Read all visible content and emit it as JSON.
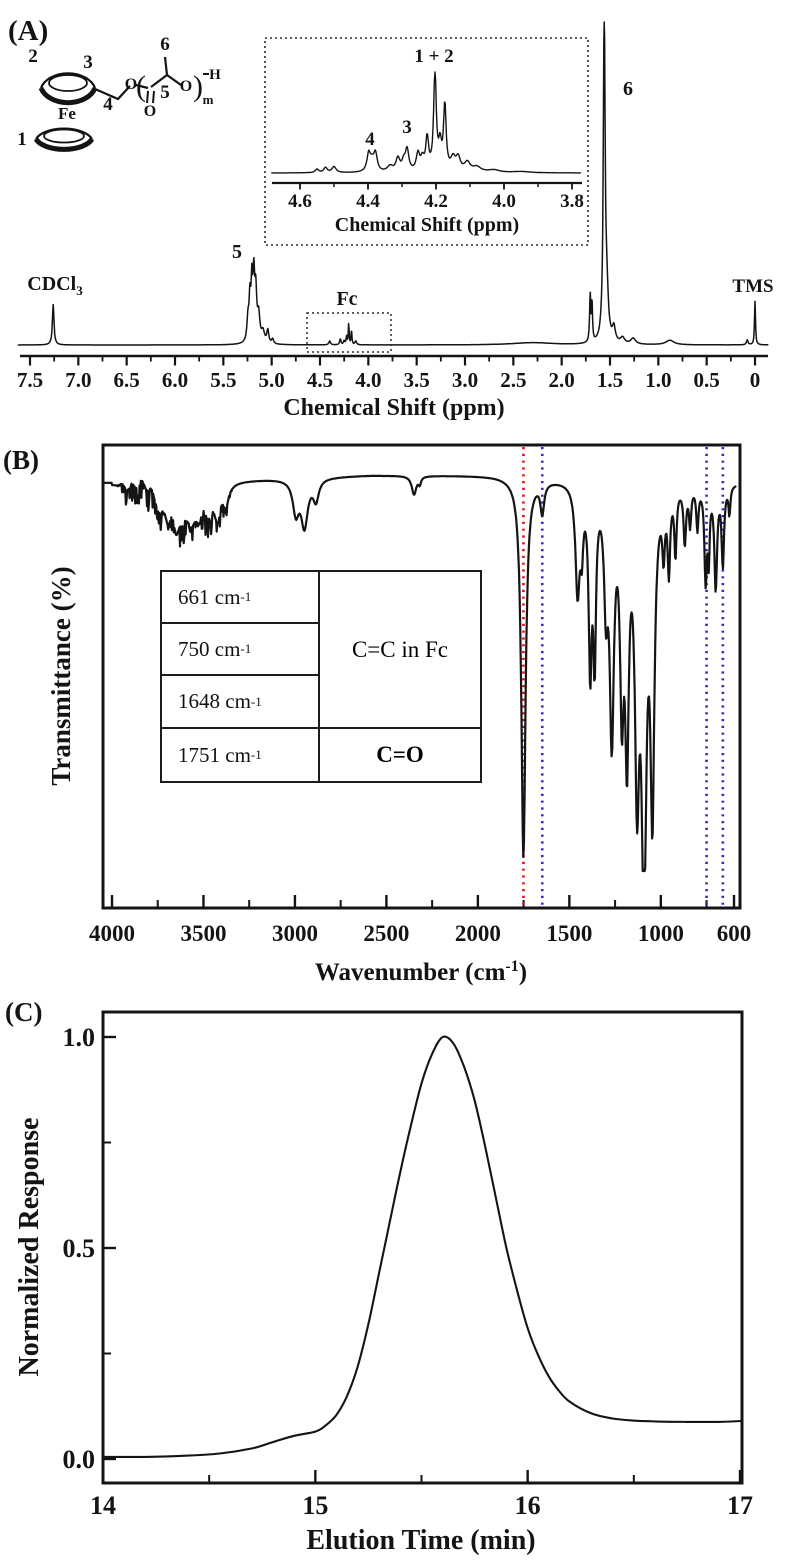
{
  "colors": {
    "ink": "#141414",
    "blue": "#2b2bd2",
    "red": "#dd1414",
    "background": "#ffffff"
  },
  "panel_a": {
    "tag": "(A)",
    "structure": {
      "ring_label_1": "1",
      "ring_label_2": "2",
      "ring_label_3": "3",
      "ch2_label": "4",
      "ch_label": "5",
      "ch3_label": "6",
      "fe": "Fe",
      "o_ester": "O",
      "o_carbonyl": "O",
      "o_chain": "O",
      "end_h": "H",
      "repeat_sub": "m"
    },
    "annotations": {
      "cdcl3_main": "CDCl",
      "cdcl3_sub": "3",
      "peak5": "5",
      "fc": "Fc",
      "peak6": "6",
      "tms": "TMS"
    },
    "inset_labels": {
      "p4": "4",
      "p3": "3",
      "p12": "1 + 2"
    }
  },
  "panel_b": {
    "tag": "(B)",
    "table": {
      "rows": [
        {
          "pre": "661 cm",
          "sup": "-1"
        },
        {
          "pre": "750 cm",
          "sup": "-1"
        },
        {
          "pre": "1648 cm",
          "sup": "-1"
        },
        {
          "pre": "1751 cm",
          "sup": "-1"
        }
      ],
      "assignment_blue": "C=C in Fc",
      "assignment_red": "C=O"
    }
  },
  "panel_c": {
    "tag": "(C)"
  },
  "chart_data": [
    {
      "id": "nmr_main",
      "type": "line",
      "xlabel": "Chemical Shift (ppm)",
      "xlim": [
        7.62,
        -0.135
      ],
      "ylim": [
        0,
        1.05
      ],
      "x_ticks": [
        7.5,
        7.0,
        6.5,
        6.0,
        5.5,
        5.0,
        4.5,
        4.0,
        3.5,
        3.0,
        2.5,
        2.0,
        1.5,
        1.0,
        0.5,
        0
      ],
      "x_tick_labels": [
        "7.5",
        "7.0",
        "6.5",
        "6.0",
        "5.5",
        "5.0",
        "4.5",
        "4.0",
        "3.5",
        "3.0",
        "2.5",
        "2.0",
        "1.5",
        "1.0",
        "0.5",
        "0"
      ],
      "x_minor_ticks": [
        7.25,
        6.75,
        6.25,
        5.75,
        5.25,
        4.75,
        4.25,
        3.75,
        3.25,
        2.75,
        2.25,
        1.75,
        1.25,
        0.75,
        0.25
      ],
      "peak_assignments": [
        {
          "ppm": 7.26,
          "label": "CDCl3"
        },
        {
          "ppm": 5.2,
          "label": "5"
        },
        {
          "ppm": 4.2,
          "label": "Fc"
        },
        {
          "ppm": 1.56,
          "label": "6"
        },
        {
          "ppm": 0.0,
          "label": "TMS"
        }
      ],
      "peaks": [
        [
          7.26,
          0.125,
          0.01
        ],
        [
          5.245,
          0.07,
          0.012
        ],
        [
          5.225,
          0.12,
          0.01
        ],
        [
          5.205,
          0.17,
          0.01
        ],
        [
          5.185,
          0.18,
          0.01
        ],
        [
          5.165,
          0.15,
          0.012
        ],
        [
          5.135,
          0.08,
          0.015
        ],
        [
          5.09,
          0.035,
          0.02
        ],
        [
          5.04,
          0.04,
          0.012
        ],
        [
          4.99,
          0.015,
          0.012
        ],
        [
          4.4,
          0.012,
          0.01
        ],
        [
          4.29,
          0.018,
          0.008
        ],
        [
          4.25,
          0.012,
          0.008
        ],
        [
          4.225,
          0.025,
          0.006
        ],
        [
          4.203,
          0.065,
          0.005
        ],
        [
          4.174,
          0.045,
          0.005
        ],
        [
          4.13,
          0.012,
          0.01
        ],
        [
          2.3,
          0.007,
          0.25
        ],
        [
          1.705,
          0.145,
          0.007
        ],
        [
          1.686,
          0.12,
          0.006
        ],
        [
          1.56,
          1.0,
          0.011
        ],
        [
          1.535,
          0.14,
          0.02
        ],
        [
          1.46,
          0.045,
          0.018
        ],
        [
          1.37,
          0.018,
          0.025
        ],
        [
          1.26,
          0.018,
          0.03
        ],
        [
          0.88,
          0.014,
          0.05
        ],
        [
          0.08,
          0.015,
          0.01
        ],
        [
          0.0,
          0.135,
          0.006
        ]
      ]
    },
    {
      "id": "nmr_inset",
      "type": "line",
      "xlabel": "Chemical Shift (ppm)",
      "xlim": [
        4.683,
        3.775
      ],
      "ylim": [
        0,
        1.1
      ],
      "x_ticks": [
        4.6,
        4.4,
        4.2,
        4.0,
        3.8
      ],
      "x_tick_labels": [
        "4.6",
        "4.4",
        "4.2",
        "4.0",
        "3.8"
      ],
      "x_minor_ticks": [
        4.5,
        4.3,
        4.1,
        3.9
      ],
      "peak_assignments": [
        {
          "ppm": 4.39,
          "label": "4"
        },
        {
          "ppm": 4.285,
          "label": "3"
        },
        {
          "ppm": 4.19,
          "label": "1 + 2"
        }
      ],
      "peaks": [
        [
          4.55,
          0.035,
          0.006
        ],
        [
          4.525,
          0.05,
          0.006
        ],
        [
          4.5,
          0.06,
          0.007
        ],
        [
          4.398,
          0.17,
          0.006
        ],
        [
          4.388,
          0.09,
          0.008
        ],
        [
          4.378,
          0.17,
          0.006
        ],
        [
          4.335,
          0.055,
          0.01
        ],
        [
          4.312,
          0.13,
          0.007
        ],
        [
          4.295,
          0.09,
          0.006
        ],
        [
          4.285,
          0.21,
          0.006
        ],
        [
          4.253,
          0.17,
          0.006
        ],
        [
          4.24,
          0.11,
          0.006
        ],
        [
          4.226,
          0.32,
          0.005
        ],
        [
          4.203,
          1.0,
          0.0045
        ],
        [
          4.188,
          0.24,
          0.005
        ],
        [
          4.174,
          0.65,
          0.0045
        ],
        [
          4.15,
          0.12,
          0.008
        ],
        [
          4.135,
          0.13,
          0.008
        ],
        [
          4.108,
          0.09,
          0.01
        ],
        [
          4.08,
          0.05,
          0.015
        ],
        [
          4.03,
          0.025,
          0.02
        ],
        [
          3.95,
          0.012,
          0.03
        ]
      ]
    },
    {
      "id": "ftir",
      "type": "line",
      "xlabel_parts": {
        "pre": "Wavenumber (cm",
        "sup": "-1",
        "post": ")"
      },
      "ylabel": "Transmittance (%)",
      "xlim": [
        4050,
        590
      ],
      "x_ticks": [
        4000,
        3500,
        3000,
        2500,
        2000,
        1500,
        1000,
        600
      ],
      "x_tick_labels": [
        "4000",
        "3500",
        "3000",
        "2500",
        "2000",
        "1500",
        "1000",
        "600"
      ],
      "x_minor_ticks": [
        3750,
        3250,
        2750,
        2250,
        1750,
        1250,
        750
      ],
      "baseline_T_points": [
        [
          4000,
          91.5
        ],
        [
          3300,
          92.5
        ],
        [
          2600,
          93.5
        ],
        [
          1900,
          93.5
        ],
        [
          1550,
          93
        ],
        [
          600,
          92
        ]
      ],
      "noise_zone": {
        "from": 3980,
        "to": 3340,
        "amplitude": 4.6
      },
      "dips": [
        [
          3735,
          5,
          25
        ],
        [
          3690,
          6,
          20
        ],
        [
          3650,
          7,
          22
        ],
        [
          3618,
          5,
          18
        ],
        [
          3565,
          8,
          25
        ],
        [
          3520,
          6,
          20
        ],
        [
          3468,
          5,
          25
        ],
        [
          3420,
          6,
          22
        ],
        [
          3378,
          4,
          20
        ],
        [
          2995,
          7,
          20
        ],
        [
          2948,
          10,
          22
        ],
        [
          2885,
          4.5,
          18
        ],
        [
          2349,
          4,
          15
        ],
        [
          2318,
          1.5,
          8
        ],
        [
          1751,
          82,
          14
        ],
        [
          1648,
          6.5,
          12
        ],
        [
          1455,
          23,
          14
        ],
        [
          1432,
          11,
          9
        ],
        [
          1386,
          38,
          10
        ],
        [
          1362,
          35,
          9
        ],
        [
          1300,
          22,
          12
        ],
        [
          1268,
          52,
          14
        ],
        [
          1213,
          42,
          12
        ],
        [
          1185,
          52,
          12
        ],
        [
          1130,
          58,
          14
        ],
        [
          1092,
          83,
          16
        ],
        [
          1046,
          66,
          13
        ],
        [
          985,
          12,
          8
        ],
        [
          956,
          17,
          8
        ],
        [
          920,
          14,
          7
        ],
        [
          869,
          12,
          8
        ],
        [
          840,
          8,
          7
        ],
        [
          800,
          9,
          7
        ],
        [
          755,
          20,
          8
        ],
        [
          738,
          14,
          6
        ],
        [
          700,
          22,
          9
        ],
        [
          661,
          17,
          8
        ],
        [
          625,
          6,
          6
        ]
      ],
      "marker_lines": [
        {
          "cm": 1751,
          "color": "#dd1414",
          "assignment": "C=O"
        },
        {
          "cm": 1648,
          "color": "#2b2bd2",
          "assignment": "C=C in Fc"
        },
        {
          "cm": 750,
          "color": "#2b2bd2",
          "assignment": "C=C in Fc"
        },
        {
          "cm": 661,
          "color": "#2b2bd2",
          "assignment": "C=C in Fc"
        }
      ]
    },
    {
      "id": "gpc",
      "type": "line",
      "xlabel": "Elution Time (min)",
      "ylabel": "Normalized Response",
      "xlim": [
        14,
        17
      ],
      "ylim": [
        -0.06,
        1.06
      ],
      "x_ticks": [
        14,
        15,
        16,
        17
      ],
      "x_tick_labels": [
        "14",
        "15",
        "16",
        "17"
      ],
      "x_minor_ticks": [
        14.5,
        15.5,
        16.5
      ],
      "y_ticks": [
        0.0,
        0.5,
        1.0
      ],
      "y_tick_labels": [
        "0.0",
        "0.5",
        "1.0"
      ],
      "y_minor_ticks": [
        0.25,
        0.75
      ],
      "peak_elution_time_min": 15.6,
      "points": [
        [
          14.0,
          0.005
        ],
        [
          14.2,
          0.005
        ],
        [
          14.4,
          0.008
        ],
        [
          14.55,
          0.013
        ],
        [
          14.7,
          0.025
        ],
        [
          14.8,
          0.04
        ],
        [
          14.9,
          0.055
        ],
        [
          15.0,
          0.065
        ],
        [
          15.05,
          0.08
        ],
        [
          15.1,
          0.105
        ],
        [
          15.15,
          0.15
        ],
        [
          15.2,
          0.22
        ],
        [
          15.25,
          0.32
        ],
        [
          15.3,
          0.44
        ],
        [
          15.35,
          0.56
        ],
        [
          15.4,
          0.68
        ],
        [
          15.45,
          0.79
        ],
        [
          15.5,
          0.89
        ],
        [
          15.55,
          0.96
        ],
        [
          15.6,
          1.0
        ],
        [
          15.65,
          0.985
        ],
        [
          15.7,
          0.93
        ],
        [
          15.75,
          0.85
        ],
        [
          15.8,
          0.74
        ],
        [
          15.85,
          0.62
        ],
        [
          15.9,
          0.5
        ],
        [
          15.95,
          0.4
        ],
        [
          16.0,
          0.31
        ],
        [
          16.05,
          0.245
        ],
        [
          16.1,
          0.195
        ],
        [
          16.15,
          0.16
        ],
        [
          16.2,
          0.135
        ],
        [
          16.3,
          0.108
        ],
        [
          16.4,
          0.096
        ],
        [
          16.5,
          0.091
        ],
        [
          16.6,
          0.089
        ],
        [
          16.75,
          0.088
        ],
        [
          16.9,
          0.088
        ],
        [
          17.0,
          0.09
        ]
      ]
    }
  ]
}
